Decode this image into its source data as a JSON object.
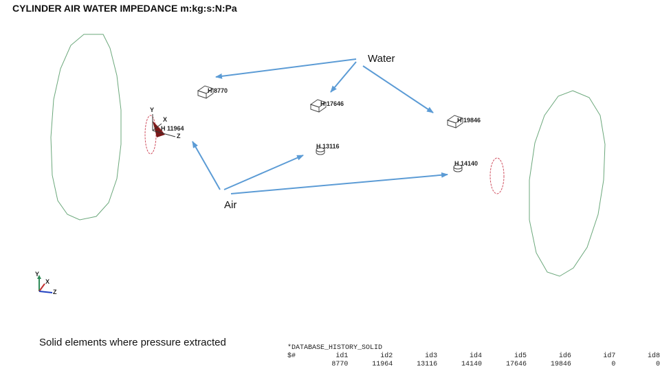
{
  "title": "CYLINDER AIR WATER IMPEDANCE m:kg:s:N:Pa",
  "callouts": {
    "water": "Water",
    "air": "Air"
  },
  "caption": "Solid elements where pressure extracted",
  "solid_history": [
    {
      "id": "H 8770"
    },
    {
      "id": "H 17646"
    },
    {
      "id": "H 19846"
    },
    {
      "id": "H 11964"
    },
    {
      "id": "H 13116"
    },
    {
      "id": "H 14140"
    }
  ],
  "local_axes": {
    "y": "Y",
    "x": "X",
    "z": "Z"
  },
  "global_triad": {
    "y": "Y",
    "x": "X",
    "z": "Z"
  },
  "database": {
    "keyword": "*DATABASE_HISTORY_SOLID",
    "comment": "$#",
    "headers": [
      "id1",
      "id2",
      "id3",
      "id4",
      "id5",
      "id6",
      "id7",
      "id8"
    ],
    "values": [
      "8770",
      "11964",
      "13116",
      "14140",
      "17646",
      "19846",
      "0",
      "0"
    ]
  },
  "colors": {
    "arrow": "#5b9bd5",
    "cylinder_outline": "#6aa77a",
    "air_region": "#d05060",
    "element_fill": "#7a1818"
  }
}
